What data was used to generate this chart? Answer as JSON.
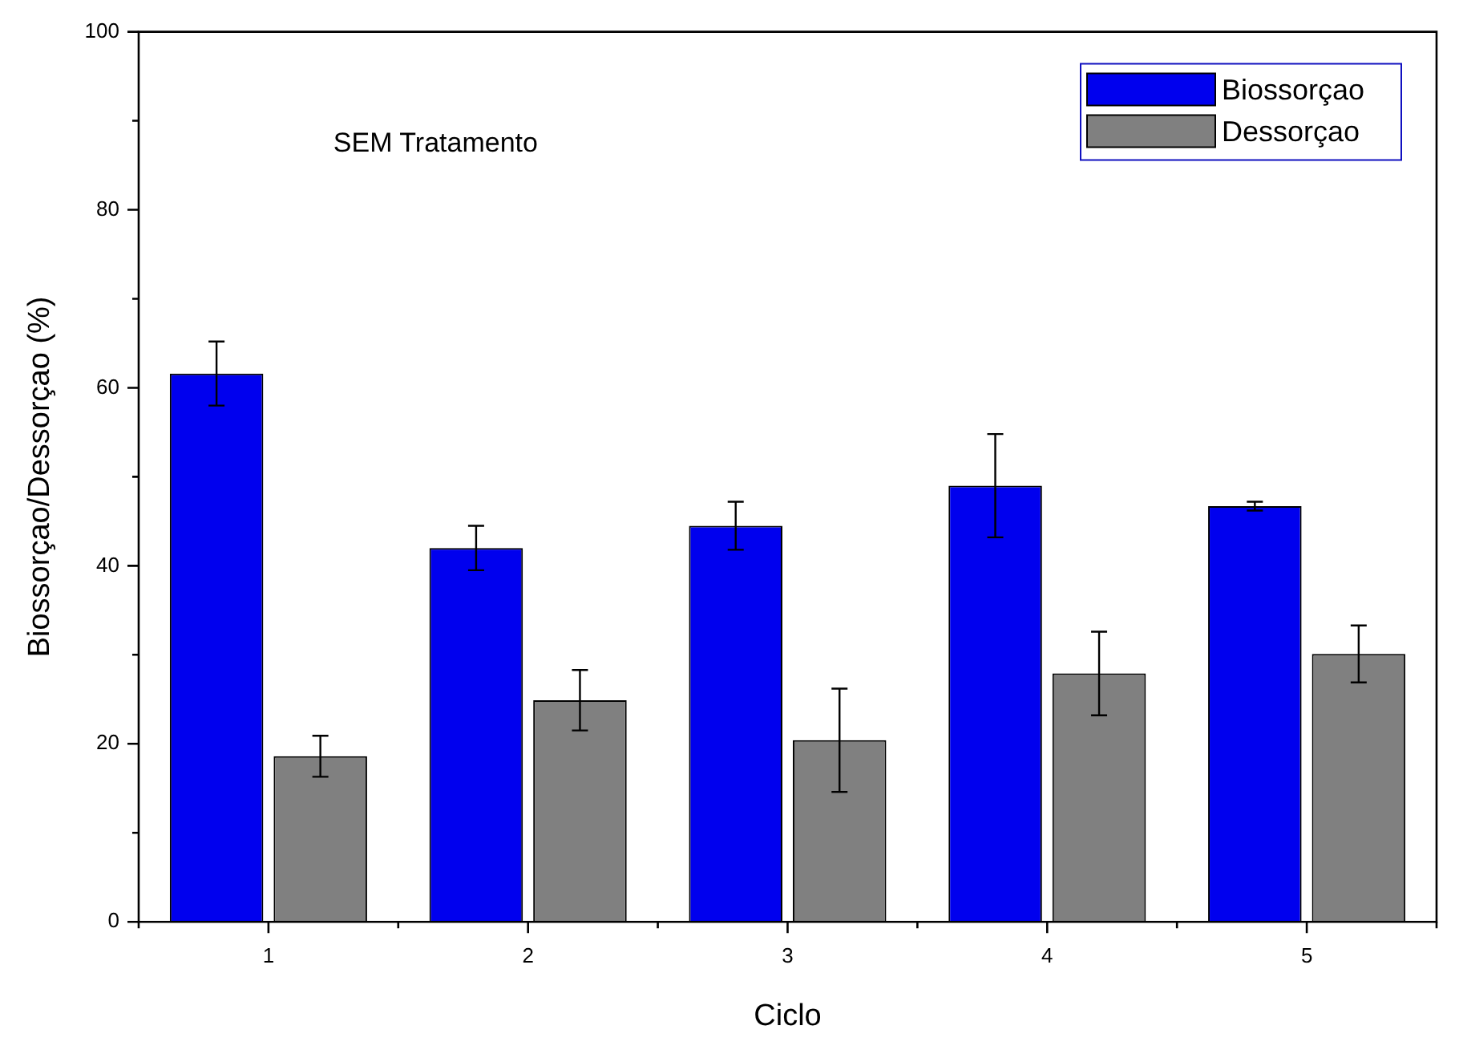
{
  "chart_data": {
    "type": "bar",
    "xlabel": "Ciclo",
    "ylabel": "Biossorçao/Dessorçao (%)",
    "categories": [
      "1",
      "2",
      "3",
      "4",
      "5"
    ],
    "series": [
      {
        "name": "Biossorçao",
        "color": "#0000ee",
        "values": [
          61.6,
          42.0,
          44.5,
          49.0,
          46.7
        ],
        "errors": [
          3.6,
          2.5,
          2.7,
          5.8,
          0.5
        ]
      },
      {
        "name": "Dessorçao",
        "color": "#808080",
        "values": [
          18.6,
          24.9,
          20.4,
          27.9,
          30.1
        ],
        "errors": [
          2.3,
          3.4,
          5.8,
          4.7,
          3.2
        ]
      }
    ],
    "ylim": [
      0,
      100
    ],
    "yticks": [
      0,
      20,
      40,
      60,
      80,
      100
    ],
    "grid": false,
    "legend": "top right",
    "annotations": [
      "SEM Tratamento"
    ]
  }
}
